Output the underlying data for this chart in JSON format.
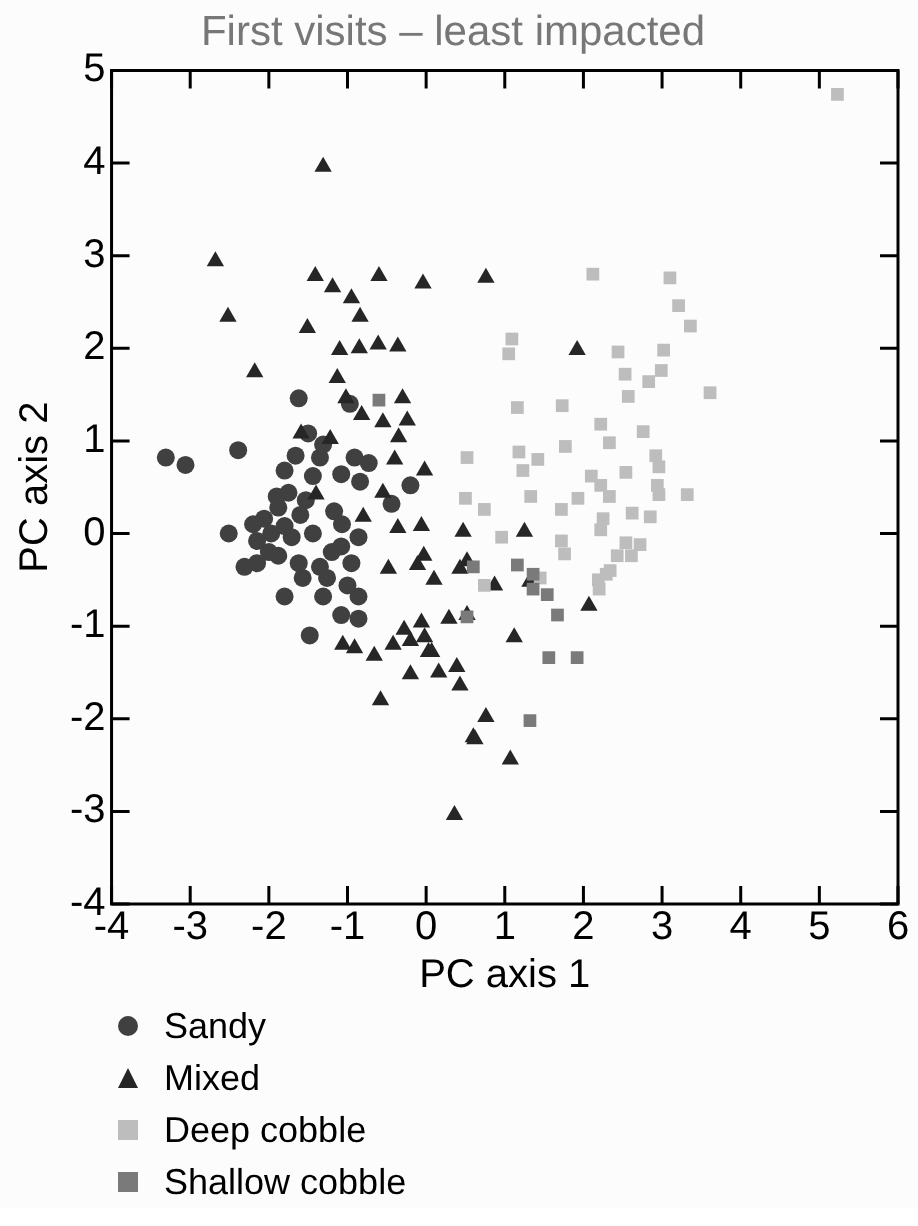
{
  "chart_data": {
    "type": "scatter",
    "title": "First visits – least impacted",
    "xlabel": "PC axis 1",
    "ylabel": "PC axis 2",
    "xlim": [
      -4,
      6
    ],
    "xticks": [
      -4,
      -3,
      -2,
      -1,
      0,
      1,
      2,
      3,
      4,
      5,
      6
    ],
    "ylim": [
      -4,
      5
    ],
    "yticks": [
      -4,
      -3,
      -2,
      -1,
      0,
      1,
      2,
      3,
      4,
      5
    ],
    "grid": false,
    "legend": "bottom",
    "series": [
      {
        "name": "Sandy",
        "color": "#404040",
        "marker": "circle",
        "x": [
          -3.31,
          -3.06,
          -2.39,
          -1.62,
          -1.5,
          -0.97,
          -1.35,
          -1.66,
          -1.31,
          -0.91,
          -0.73,
          -0.2,
          -1.8,
          -1.44,
          -1.08,
          -0.84,
          -1.75,
          -1.53,
          -1.17,
          -1.07,
          -0.44,
          -1.88,
          -2.06,
          -1.8,
          -2.51,
          -2.15,
          -1.97,
          -1.71,
          -1.44,
          -1.08,
          -0.86,
          -2.15,
          -2.31,
          -1.88,
          -1.62,
          -1.35,
          -0.95,
          -1.8,
          -1.48,
          -1.31,
          -1.08,
          -0.86,
          -1.57,
          -1.26,
          -1.0,
          -0.86,
          -2.0,
          -1.9,
          -2.2,
          -1.6,
          -1.2
        ],
        "values": [
          0.82,
          0.74,
          0.9,
          1.46,
          1.08,
          1.4,
          0.82,
          0.84,
          0.96,
          0.82,
          0.76,
          0.52,
          0.68,
          0.62,
          0.64,
          0.56,
          0.44,
          0.36,
          0.24,
          0.1,
          0.32,
          0.28,
          0.16,
          0.08,
          0.0,
          -0.08,
          0.0,
          -0.04,
          0.0,
          -0.14,
          -0.04,
          -0.32,
          -0.36,
          -0.24,
          -0.32,
          -0.36,
          -0.32,
          -0.68,
          -1.1,
          -0.68,
          -0.88,
          -0.92,
          -0.48,
          -0.48,
          -0.56,
          -0.68,
          -0.2,
          0.4,
          0.1,
          0.2,
          -0.2
        ]
      },
      {
        "name": "Mixed",
        "color": "#262626",
        "marker": "triangle",
        "x": [
          -1.31,
          -2.68,
          -2.52,
          -2.18,
          -1.41,
          -1.19,
          -0.95,
          -0.84,
          -0.6,
          -0.04,
          -1.51,
          -1.1,
          -0.85,
          -0.61,
          -0.36,
          -1.13,
          -1.02,
          -0.82,
          -0.55,
          -0.3,
          -0.24,
          -0.35,
          -1.22,
          -1.59,
          -0.4,
          -0.02,
          -0.55,
          -0.8,
          -0.36,
          -0.06,
          0.47,
          -1.4,
          0.76,
          1.92,
          1.25,
          0.52,
          -0.03,
          -0.48,
          -0.11,
          0.1,
          0.43,
          -1.06,
          -0.91,
          -0.66,
          -0.42,
          -0.28,
          -0.06,
          -0.2,
          0.03,
          -0.2,
          0.16,
          0.39,
          0.43,
          -0.58,
          0.36,
          0.6,
          0.29,
          0.52,
          -0.02,
          0.07,
          1.12,
          2.07,
          0.76,
          0.62,
          1.07,
          0.87,
          1.32
        ],
        "values": [
          3.96,
          2.94,
          2.34,
          1.74,
          2.78,
          2.66,
          2.54,
          2.34,
          2.78,
          2.7,
          2.22,
          1.98,
          2.0,
          2.04,
          2.02,
          1.68,
          1.46,
          1.28,
          1.2,
          1.46,
          1.22,
          1.04,
          1.02,
          1.08,
          0.8,
          0.68,
          0.44,
          0.18,
          0.06,
          0.08,
          0.02,
          0.42,
          2.76,
          1.98,
          0.02,
          -0.3,
          -0.24,
          -0.38,
          -0.34,
          -0.5,
          -0.38,
          -1.2,
          -1.24,
          -1.32,
          -1.2,
          -1.04,
          -0.96,
          -1.16,
          -1.28,
          -1.52,
          -1.5,
          -1.44,
          -1.64,
          -1.8,
          -3.04,
          -2.2,
          -0.92,
          -0.88,
          -1.12,
          -1.28,
          -1.12,
          -0.78,
          -1.98,
          -2.22,
          -2.44,
          -0.56,
          -0.52
        ]
      },
      {
        "name": "Deep cobble",
        "color": "#bdbdbd",
        "marker": "square",
        "x": [
          5.23,
          2.12,
          3.1,
          3.21,
          3.36,
          1.09,
          1.05,
          2.44,
          3.02,
          2.53,
          2.99,
          2.83,
          2.57,
          3.61,
          1.16,
          1.73,
          2.22,
          2.33,
          2.76,
          1.77,
          0.52,
          1.18,
          1.42,
          1.23,
          2.92,
          2.96,
          2.54,
          2.1,
          2.22,
          2.94,
          3.32,
          2.96,
          0.5,
          0.74,
          1.33,
          1.93,
          1.72,
          2.33,
          2.62,
          2.85,
          2.25,
          2.22,
          0.96,
          1.72,
          1.76,
          2.54,
          2.72,
          2.43,
          2.61,
          2.34,
          2.19,
          1.45,
          0.74,
          2.29,
          2.2
        ],
        "values": [
          4.74,
          2.8,
          2.76,
          2.46,
          2.24,
          2.1,
          1.94,
          1.96,
          1.98,
          1.72,
          1.76,
          1.64,
          1.48,
          1.52,
          1.36,
          1.38,
          1.18,
          0.98,
          1.1,
          0.94,
          0.82,
          0.88,
          0.8,
          0.68,
          0.84,
          0.72,
          0.66,
          0.62,
          0.52,
          0.52,
          0.42,
          0.42,
          0.38,
          0.26,
          0.4,
          0.38,
          0.26,
          0.4,
          0.22,
          0.18,
          0.16,
          0.04,
          -0.04,
          -0.08,
          -0.22,
          -0.1,
          -0.12,
          -0.24,
          -0.24,
          -0.4,
          -0.5,
          -0.48,
          -0.56,
          -0.44,
          -0.6
        ]
      },
      {
        "name": "Shallow cobble",
        "color": "#7a7a7a",
        "marker": "square",
        "x": [
          -0.6,
          0.6,
          1.16,
          1.36,
          1.54,
          1.67,
          0.52,
          1.56,
          1.92,
          1.32,
          1.36
        ],
        "values": [
          1.44,
          -0.36,
          -0.34,
          -0.6,
          -0.66,
          -0.88,
          -0.9,
          -1.34,
          -1.34,
          -2.02,
          -0.44
        ]
      }
    ]
  }
}
